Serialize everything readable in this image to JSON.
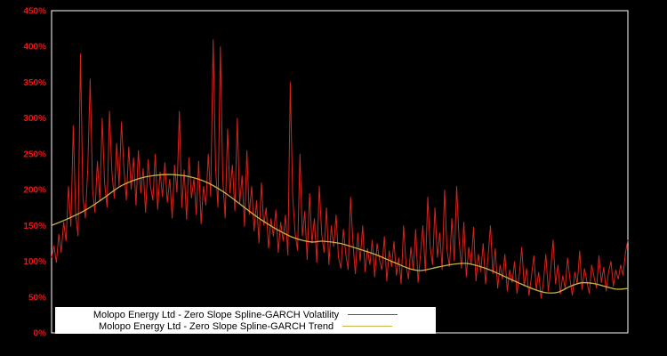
{
  "chart_data": {
    "type": "line",
    "title": "",
    "xlabel": "",
    "ylabel": "",
    "ylim": [
      0,
      450
    ],
    "y_ticks": [
      "450%",
      "400%",
      "350%",
      "300%",
      "250%",
      "200%",
      "150%",
      "100%",
      "50%",
      "0%"
    ],
    "grid": false,
    "background": "#000000",
    "frame_color": "#ffffff",
    "axis_label_color": "#ee1515",
    "legend": {
      "position": "bottom-inside",
      "background": "#ffffff",
      "text_color": "#000000"
    },
    "series": [
      {
        "name": "Molopo Energy Ltd - Zero Slope Spline-GARCH Volatility",
        "color": "#d8231d",
        "values": [
          105,
          122,
          98,
          138,
          112,
          155,
          128,
          205,
          148,
          290,
          165,
          135,
          390,
          190,
          160,
          230,
          355,
          200,
          168,
          240,
          185,
          300,
          210,
          175,
          310,
          225,
          188,
          265,
          205,
          295,
          230,
          185,
          260,
          200,
          245,
          178,
          255,
          195,
          230,
          168,
          242,
          205,
          185,
          250,
          172,
          225,
          190,
          238,
          182,
          215,
          160,
          235,
          196,
          310,
          175,
          228,
          158,
          245,
          188,
          215,
          165,
          240,
          152,
          205,
          178,
          250,
          190,
          410,
          230,
          175,
          400,
          215,
          160,
          285,
          195,
          235,
          170,
          300,
          180,
          220,
          148,
          255,
          165,
          205,
          142,
          185,
          125,
          210,
          150,
          175,
          118,
          160,
          135,
          172,
          112,
          155,
          128,
          165,
          108,
          350,
          190,
          140,
          115,
          250,
          135,
          170,
          102,
          195,
          125,
          160,
          98,
          205,
          138,
          112,
          175,
          95,
          150,
          120,
          165,
          105,
          90,
          145,
          110,
          88,
          190,
          125,
          82,
          140,
          100,
          150,
          85,
          118,
          95,
          130,
          78,
          125,
          102,
          88,
          135,
          72,
          115,
          92,
          128,
          80,
          105,
          68,
          150,
          95,
          75,
          120,
          88,
          145,
          70,
          110,
          150,
          85,
          190,
          120,
          95,
          175,
          105,
          140,
          88,
          200,
          115,
          92,
          160,
          100,
          205,
          130,
          90,
          155,
          78,
          120,
          95,
          148,
          72,
          110,
          85,
          125,
          68,
          105,
          150,
          82,
          118,
          62,
          95,
          75,
          110,
          58,
          88,
          70,
          100,
          55,
          82,
          120,
          65,
          90,
          52,
          78,
          108,
          60,
          85,
          48,
          72,
          110,
          58,
          88,
          130,
          68,
          95,
          54,
          80,
          62,
          105,
          75,
          52,
          85,
          68,
          115,
          60,
          90,
          72,
          55,
          95,
          78,
          62,
          108,
          70,
          92,
          58,
          85,
          100,
          65,
          88,
          75,
          95,
          80,
          112,
          130
        ]
      },
      {
        "name": "Molopo Energy Ltd - Zero Slope Spline-GARCH Trend",
        "color": "#c8b446",
        "x": [
          0.0,
          0.03,
          0.06,
          0.09,
          0.12,
          0.15,
          0.18,
          0.21,
          0.24,
          0.27,
          0.3,
          0.33,
          0.36,
          0.39,
          0.42,
          0.45,
          0.47,
          0.5,
          0.53,
          0.56,
          0.59,
          0.62,
          0.64,
          0.66,
          0.69,
          0.72,
          0.75,
          0.78,
          0.81,
          0.84,
          0.86,
          0.88,
          0.9,
          0.92,
          0.94,
          0.96,
          0.98,
          1.0
        ],
        "values": [
          150,
          160,
          172,
          188,
          205,
          215,
          220,
          221,
          218,
          210,
          196,
          178,
          160,
          145,
          133,
          127,
          128,
          125,
          118,
          110,
          100,
          90,
          87,
          90,
          95,
          97,
          91,
          81,
          70,
          60,
          56,
          57,
          65,
          70,
          69,
          65,
          61,
          62
        ]
      }
    ]
  }
}
